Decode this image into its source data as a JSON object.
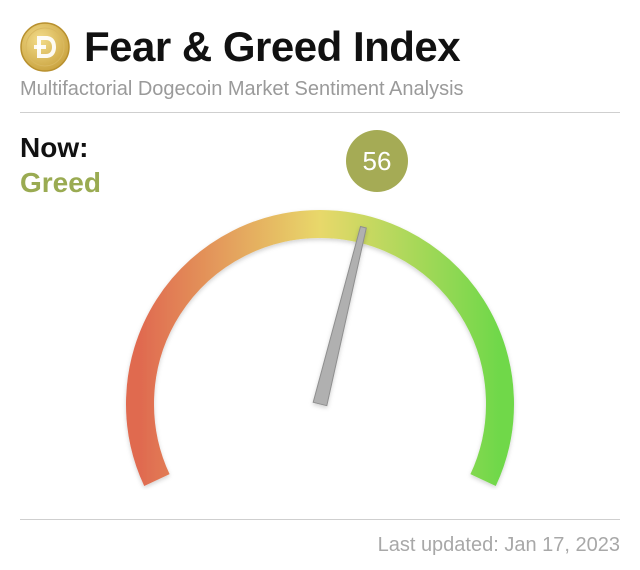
{
  "header": {
    "title": "Fear & Greed Index",
    "subtitle": "Multifactorial Dogecoin Market Sentiment Analysis",
    "logo_icon": "dogecoin-logo-icon"
  },
  "status": {
    "now_label": "Now:",
    "classification": "Greed",
    "classification_color": "#9aab52"
  },
  "gauge": {
    "value": "56",
    "value_numeric": 56,
    "min": 0,
    "max": 100,
    "badge_color": "#a5ab55",
    "colors": {
      "fear": "#e06a50",
      "neutral": "#e8d86a",
      "greed": "#6fd84a",
      "needle": "#b0b0b0"
    }
  },
  "footer": {
    "last_updated": "Last updated: Jan 17, 2023"
  }
}
